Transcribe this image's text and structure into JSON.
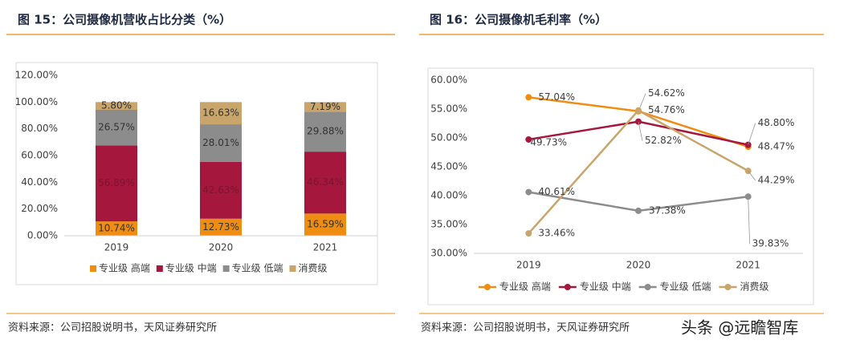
{
  "chart_data": [
    {
      "type": "stacked-bar",
      "title": "图 15：公司摄像机营收占比分类（%）",
      "categories": [
        "2019",
        "2020",
        "2021"
      ],
      "series": [
        {
          "name": "专业级 高端",
          "color": "#ef8c12",
          "values": [
            10.74,
            12.73,
            16.59
          ],
          "value_labels": [
            "10.74%",
            "12.73%",
            "16.59%"
          ]
        },
        {
          "name": "专业级 中端",
          "color": "#a5173c",
          "values": [
            56.89,
            42.63,
            46.34
          ],
          "value_labels": [
            "56.89%",
            "42.63%",
            "46.34%"
          ]
        },
        {
          "name": "专业级 低端",
          "color": "#8c8c8c",
          "values": [
            26.57,
            28.01,
            29.88
          ],
          "value_labels": [
            "26.57%",
            "28.01%",
            "29.88%"
          ]
        },
        {
          "name": "消费级",
          "color": "#c9a46b",
          "values": [
            5.8,
            16.63,
            7.19
          ],
          "value_labels": [
            "5.80%",
            "16.63%",
            "7.19%"
          ]
        }
      ],
      "ylim": [
        0,
        120
      ],
      "yticks": [
        {
          "value": 0,
          "label": "0.00%"
        },
        {
          "value": 20,
          "label": "20.00%"
        },
        {
          "value": 40,
          "label": "40.00%"
        },
        {
          "value": 60,
          "label": "60.00%"
        },
        {
          "value": 80,
          "label": "80.00%"
        },
        {
          "value": 100,
          "label": "100.00%"
        },
        {
          "value": 120,
          "label": "120.00%"
        }
      ],
      "grid": false,
      "legend": "bottom",
      "source": "资料来源：公司招股说明书，天风证券研究所"
    },
    {
      "type": "line",
      "title": "图 16：公司摄像机毛利率（%）",
      "categories": [
        "2019",
        "2020",
        "2021"
      ],
      "series": [
        {
          "name": "专业级 高端",
          "color": "#ef8c12",
          "values": [
            57.04,
            54.62,
            48.47
          ],
          "value_labels": [
            "57.04%",
            "54.62%",
            "48.47%"
          ]
        },
        {
          "name": "专业级 中端",
          "color": "#a5173c",
          "values": [
            49.73,
            52.82,
            48.8
          ],
          "value_labels": [
            "49.73%",
            "52.82%",
            "48.80%"
          ]
        },
        {
          "name": "专业级 低端",
          "color": "#8c8c8c",
          "values": [
            40.61,
            37.38,
            39.83
          ],
          "value_labels": [
            "40.61%",
            "37.38%",
            "39.83%"
          ]
        },
        {
          "name": "消费级",
          "color": "#c9a46b",
          "values": [
            33.46,
            54.76,
            44.29
          ],
          "value_labels": [
            "33.46%",
            "54.76%",
            "44.29%"
          ]
        }
      ],
      "ylim": [
        30,
        60
      ],
      "yticks": [
        {
          "value": 30,
          "label": "30.00%"
        },
        {
          "value": 35,
          "label": "35.00%"
        },
        {
          "value": 40,
          "label": "40.00%"
        },
        {
          "value": 45,
          "label": "45.00%"
        },
        {
          "value": 50,
          "label": "50.00%"
        },
        {
          "value": 55,
          "label": "55.00%"
        },
        {
          "value": 60,
          "label": "60.00%"
        }
      ],
      "grid": false,
      "legend": "bottom",
      "source": "资料来源：公司招股说明书，天风证券研究所"
    }
  ],
  "watermark": "头条 @远瞻智库"
}
